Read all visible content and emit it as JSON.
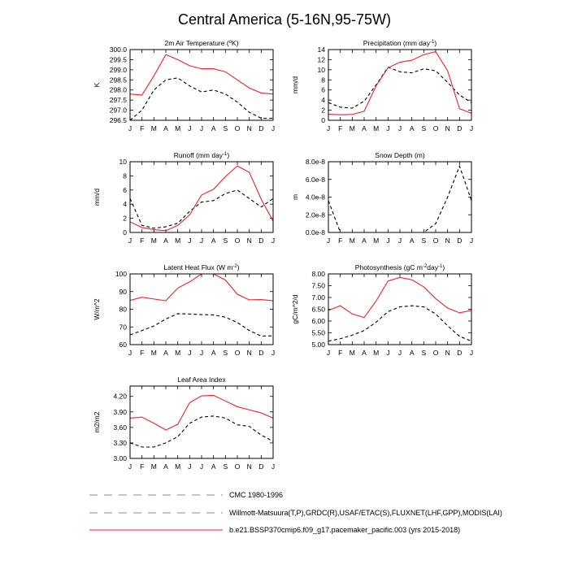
{
  "title": "Central America (5-16N,95-75W)",
  "months": [
    "J",
    "F",
    "M",
    "A",
    "M",
    "J",
    "J",
    "A",
    "S",
    "O",
    "N",
    "D",
    "J"
  ],
  "colors": {
    "model": "#e8242c",
    "obs": "#000000",
    "legend_dash": "#8a8aa0"
  },
  "chart_data": [
    {
      "type": "line",
      "title_main": "2m Air Temperature (",
      "title_sup": "o",
      "title_tail": "K)",
      "ylabel": "K",
      "ylim": [
        296.5,
        300.0
      ],
      "yticks": [
        296.5,
        297.0,
        297.5,
        298.0,
        298.5,
        299.0,
        299.5,
        300.0
      ],
      "ytick_labels": [
        "296.5",
        "297.0",
        "297.5",
        "298.0",
        "298.5",
        "299.0",
        "299.5",
        "300.0"
      ],
      "series": [
        {
          "name": "obs",
          "values": [
            296.5,
            297.0,
            298.0,
            298.5,
            298.6,
            298.2,
            297.9,
            298.0,
            297.8,
            297.4,
            296.9,
            296.6,
            296.6
          ]
        },
        {
          "name": "model",
          "values": [
            297.8,
            297.75,
            298.7,
            299.75,
            299.5,
            299.2,
            299.05,
            299.05,
            298.9,
            298.5,
            298.1,
            297.85,
            297.8
          ]
        }
      ]
    },
    {
      "type": "line",
      "title_main": "Precipitation (mm day",
      "title_sup": "-1",
      "title_tail": ")",
      "ylabel": "mm/d",
      "ylim": [
        0,
        14
      ],
      "yticks": [
        0,
        2,
        4,
        6,
        8,
        10,
        12,
        14
      ],
      "ytick_labels": [
        "0",
        "2",
        "4",
        "6",
        "8",
        "10",
        "12",
        "14"
      ],
      "series": [
        {
          "name": "obs",
          "values": [
            3.5,
            2.6,
            2.4,
            3.8,
            7.0,
            10.5,
            9.6,
            9.4,
            10.2,
            9.8,
            7.5,
            5.0,
            3.5
          ]
        },
        {
          "name": "model",
          "values": [
            1.2,
            1.1,
            1.15,
            1.8,
            6.8,
            10.4,
            11.5,
            11.9,
            13.0,
            13.6,
            9.8,
            2.3,
            1.4
          ]
        }
      ]
    },
    {
      "type": "line",
      "title_main": "Runoff (mm day",
      "title_sup": "-1",
      "title_tail": ")",
      "ylabel": "mm/d",
      "ylim": [
        0,
        10
      ],
      "yticks": [
        0,
        2,
        4,
        6,
        8,
        10
      ],
      "ytick_labels": [
        "0",
        "2",
        "4",
        "6",
        "8",
        "10"
      ],
      "series": [
        {
          "name": "obs",
          "values": [
            4.8,
            1.0,
            0.6,
            0.8,
            1.3,
            3.0,
            4.3,
            4.5,
            5.5,
            6.0,
            4.8,
            3.6,
            4.8
          ]
        },
        {
          "name": "model",
          "values": [
            1.5,
            0.7,
            0.4,
            0.25,
            1.0,
            2.5,
            5.3,
            6.1,
            7.9,
            9.4,
            8.5,
            4.7,
            1.6
          ]
        }
      ]
    },
    {
      "type": "line",
      "title_main": "Snow Depth (m)",
      "title_sup": "",
      "title_tail": "",
      "ylabel": "m",
      "ylim": [
        0,
        8e-08
      ],
      "yticks": [
        0,
        2e-08,
        4e-08,
        6e-08,
        8e-08
      ],
      "ytick_labels": [
        "0.0e-8",
        "2.0e-8",
        "4.0e-8",
        "6.0e-8",
        "8.0e-8"
      ],
      "series": [
        {
          "name": "obs",
          "values": [
            3.6e-08,
            0,
            0,
            0,
            0,
            0,
            0,
            0,
            0,
            1e-08,
            4e-08,
            7.5e-08,
            3.6e-08
          ]
        }
      ]
    },
    {
      "type": "line",
      "title_main": "Latent Heat Flux (W m",
      "title_sup": "-2",
      "title_tail": ")",
      "ylabel": "W/m^2",
      "ylim": [
        60,
        100
      ],
      "yticks": [
        60,
        70,
        80,
        90,
        100
      ],
      "ytick_labels": [
        "60",
        "70",
        "80",
        "90",
        "100"
      ],
      "series": [
        {
          "name": "obs",
          "values": [
            65.5,
            68.0,
            70.5,
            74.5,
            77.5,
            77.3,
            77.0,
            76.8,
            75.5,
            72.5,
            68.0,
            64.8,
            65.0
          ]
        },
        {
          "name": "model",
          "values": [
            85.0,
            86.8,
            85.8,
            84.8,
            92.0,
            95.5,
            100.0,
            100.0,
            96.5,
            88.5,
            85.3,
            85.5,
            84.8
          ]
        }
      ]
    },
    {
      "type": "line",
      "title_main": "Photosynthesis (gC m",
      "title_sup": "-2",
      "title_tail": "day",
      "title_sup2": "-1",
      "title_tail2": ")",
      "ylabel": "gC/m^2/d",
      "ylim": [
        5.0,
        8.0
      ],
      "yticks": [
        5.0,
        5.5,
        6.0,
        6.5,
        7.0,
        7.5,
        8.0
      ],
      "ytick_labels": [
        "5.00",
        "5.50",
        "6.00",
        "6.50",
        "7.00",
        "7.50",
        "8.00"
      ],
      "series": [
        {
          "name": "obs",
          "values": [
            5.15,
            5.25,
            5.4,
            5.6,
            5.95,
            6.4,
            6.6,
            6.65,
            6.6,
            6.3,
            5.8,
            5.35,
            5.15
          ]
        },
        {
          "name": "model",
          "values": [
            6.45,
            6.65,
            6.3,
            6.15,
            6.85,
            7.7,
            7.85,
            7.75,
            7.45,
            6.95,
            6.55,
            6.35,
            6.45
          ]
        }
      ]
    },
    {
      "type": "line",
      "title_main": "Leaf Area Index",
      "title_sup": "",
      "title_tail": "",
      "ylabel": "m2/m2",
      "ylim": [
        3.0,
        4.4
      ],
      "yticks": [
        3.0,
        3.3,
        3.6,
        3.9,
        4.2
      ],
      "ytick_labels": [
        "3.00",
        "3.30",
        "3.60",
        "3.90",
        "4.20"
      ],
      "series": [
        {
          "name": "obs",
          "values": [
            3.3,
            3.22,
            3.22,
            3.3,
            3.42,
            3.68,
            3.8,
            3.82,
            3.78,
            3.65,
            3.62,
            3.45,
            3.33
          ]
        },
        {
          "name": "model",
          "values": [
            3.78,
            3.8,
            3.68,
            3.55,
            3.66,
            4.08,
            4.21,
            4.22,
            4.11,
            4.0,
            3.94,
            3.88,
            3.78
          ]
        }
      ]
    }
  ],
  "legend": [
    {
      "label": "CMC 1980-1996",
      "style": "dash"
    },
    {
      "label": "Willmott-Matsuura(T,P),GRDC(R),USAF/ETAC(S),FLUXNET(LHF,GPP),MODIS(LAI)",
      "style": "dash"
    },
    {
      "label": "b.e21.BSSP370cmip6.f09_g17.pacemaker_pacific.003 (yrs 2015-2018)",
      "style": "solid"
    }
  ]
}
